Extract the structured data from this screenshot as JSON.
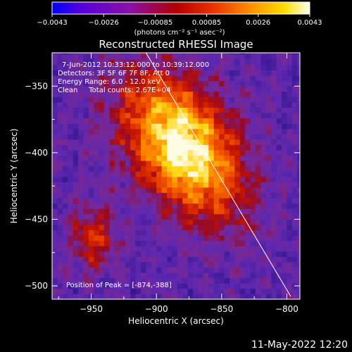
{
  "chart_data": {
    "type": "heatmap",
    "title": "Reconstructed RHESSI Image",
    "xlabel": "Heliocentric X (arcsec)",
    "ylabel": "Heliocentric Y (arcsec)",
    "xlim": [
      -980,
      -790
    ],
    "ylim": [
      -510,
      -325
    ],
    "x_ticks": [
      -950,
      -900,
      -850,
      -800
    ],
    "x_tick_labels": [
      "−950",
      "−900",
      "−850",
      "−800"
    ],
    "y_ticks": [
      -350,
      -400,
      -450,
      -500
    ],
    "y_tick_labels": [
      "−350",
      "−400",
      "−450",
      "−500"
    ],
    "colorbar": {
      "min": -0.0043,
      "max": 0.0043,
      "tick_labels": [
        "−0.0043",
        "−0.0026",
        "−0.00085",
        "0.00085",
        "0.0026",
        "0.0043"
      ],
      "units_label": "(photons cm⁻² s⁻¹ asec⁻²)"
    },
    "annotations": [
      "7-Jun-2012 10:33:12.000 to 10:39:12.000",
      "Detectors: 3F 5F 6F 7F 8F, Att 0",
      "Energy Range: 6.0 - 12.0 keV",
      "Clean     Total counts: 2.67E+04"
    ],
    "peak_label": "Position of Peak = [-874,-388]",
    "peak_position": [
      -874,
      -388
    ],
    "limb_line": [
      [
        -908,
        -325
      ],
      [
        -797,
        -508
      ]
    ],
    "source_center": [
      -880,
      -395
    ],
    "colors": {
      "background": "#000000",
      "map_base": "#5a2a9c",
      "limb": "#ffffff"
    }
  },
  "footer": {
    "timestamp": "11-May-2022 12:20"
  }
}
